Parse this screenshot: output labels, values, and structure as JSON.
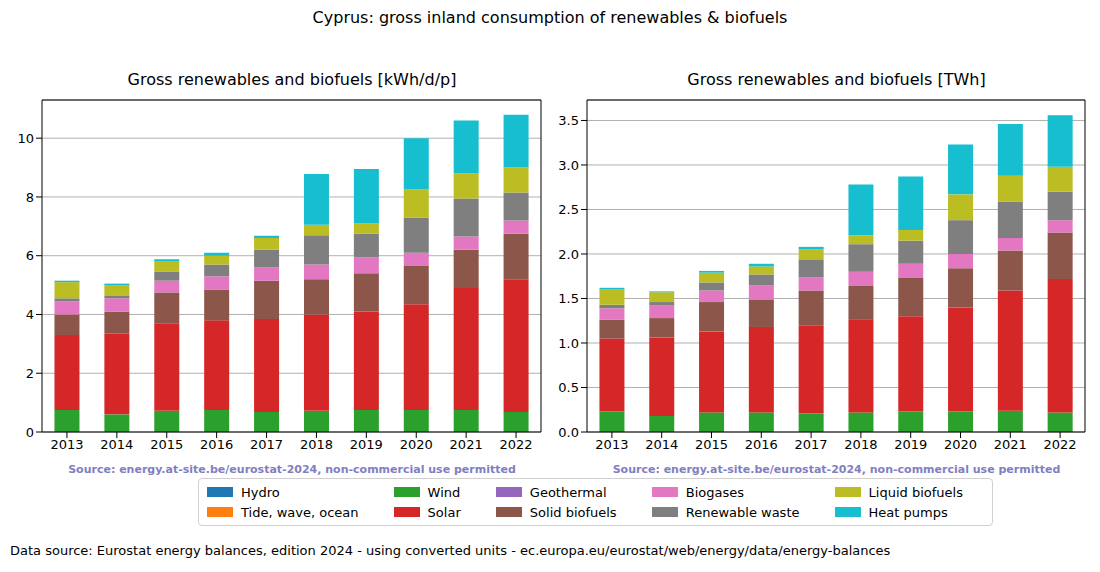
{
  "title": "Cyprus: gross inland consumption of renewables & biofuels",
  "footer": "Data source: Eurostat energy balances, edition 2024 - using converted units - ec.europa.eu/eurostat/web/energy/data/energy-balances",
  "legend": "lower center",
  "chart_data": [
    {
      "type": "bar",
      "stacked": true,
      "grid": true,
      "title": "Gross renewables and biofuels [kWh/d/p]",
      "source": "Source: energy.at-site.be/eurostat-2024, non-commercial use permitted",
      "categories": [
        "2013",
        "2014",
        "2015",
        "2016",
        "2017",
        "2018",
        "2019",
        "2020",
        "2021",
        "2022"
      ],
      "ylim": [
        0,
        11.3
      ],
      "yticks": [
        0,
        2,
        4,
        6,
        8,
        10
      ],
      "series": [
        {
          "name": "Hydro",
          "color": "#1f77b4",
          "values": [
            0,
            0,
            0,
            0,
            0,
            0,
            0,
            0,
            0,
            0
          ]
        },
        {
          "name": "Tide, wave, ocean",
          "color": "#ff7f0e",
          "values": [
            0,
            0,
            0,
            0,
            0,
            0,
            0,
            0,
            0,
            0
          ]
        },
        {
          "name": "Wind",
          "color": "#2ca02c",
          "values": [
            0.75,
            0.6,
            0.72,
            0.75,
            0.68,
            0.72,
            0.75,
            0.75,
            0.75,
            0.68
          ]
        },
        {
          "name": "Solar",
          "color": "#d62728",
          "values": [
            2.55,
            2.75,
            2.98,
            3.05,
            3.17,
            3.28,
            3.35,
            3.6,
            4.15,
            4.52
          ]
        },
        {
          "name": "Geothermal",
          "color": "#9467bd",
          "values": [
            0,
            0,
            0,
            0,
            0,
            0,
            0,
            0,
            0,
            0
          ]
        },
        {
          "name": "Solid biofuels",
          "color": "#8c564b",
          "values": [
            0.7,
            0.75,
            1.05,
            1.05,
            1.3,
            1.2,
            1.3,
            1.3,
            1.3,
            1.55
          ]
        },
        {
          "name": "Biogases",
          "color": "#e377c2",
          "values": [
            0.45,
            0.45,
            0.4,
            0.45,
            0.45,
            0.5,
            0.55,
            0.45,
            0.45,
            0.45
          ]
        },
        {
          "name": "Renewable waste",
          "color": "#7f7f7f",
          "values": [
            0.1,
            0.1,
            0.3,
            0.4,
            0.6,
            1.0,
            0.8,
            1.2,
            1.3,
            0.95
          ]
        },
        {
          "name": "Liquid biofuels",
          "color": "#bcbd22",
          "values": [
            0.55,
            0.35,
            0.35,
            0.3,
            0.4,
            0.35,
            0.35,
            0.95,
            0.85,
            0.85
          ]
        },
        {
          "name": "Heat pumps",
          "color": "#17becf",
          "values": [
            0.05,
            0.05,
            0.08,
            0.1,
            0.08,
            1.73,
            1.85,
            1.75,
            1.8,
            1.8
          ]
        }
      ]
    },
    {
      "type": "bar",
      "stacked": true,
      "grid": true,
      "title": "Gross renewables and biofuels [TWh]",
      "source": "Source: energy.at-site.be/eurostat-2024, non-commercial use permitted",
      "categories": [
        "2013",
        "2014",
        "2015",
        "2016",
        "2017",
        "2018",
        "2019",
        "2020",
        "2021",
        "2022"
      ],
      "ylim": [
        0,
        3.73
      ],
      "yticks": [
        {
          "value": 0,
          "label": "0.0"
        },
        0.5,
        {
          "value": 1,
          "label": "1.0"
        },
        1.5,
        {
          "value": 2,
          "label": "2.0"
        },
        2.5,
        {
          "value": 3,
          "label": "3.0"
        },
        3.5
      ],
      "series": [
        {
          "name": "Hydro",
          "color": "#1f77b4",
          "values": [
            0,
            0,
            0,
            0,
            0,
            0,
            0,
            0,
            0,
            0
          ]
        },
        {
          "name": "Tide, wave, ocean",
          "color": "#ff7f0e",
          "values": [
            0,
            0,
            0,
            0,
            0,
            0,
            0,
            0,
            0,
            0
          ]
        },
        {
          "name": "Wind",
          "color": "#2ca02c",
          "values": [
            0.23,
            0.18,
            0.22,
            0.22,
            0.21,
            0.22,
            0.23,
            0.23,
            0.24,
            0.22
          ]
        },
        {
          "name": "Solar",
          "color": "#d62728",
          "values": [
            0.82,
            0.88,
            0.91,
            0.96,
            0.99,
            1.04,
            1.07,
            1.17,
            1.35,
            1.5
          ]
        },
        {
          "name": "Geothermal",
          "color": "#9467bd",
          "values": [
            0,
            0,
            0,
            0,
            0,
            0,
            0,
            0,
            0,
            0
          ]
        },
        {
          "name": "Solid biofuels",
          "color": "#8c564b",
          "values": [
            0.21,
            0.22,
            0.33,
            0.31,
            0.39,
            0.38,
            0.43,
            0.44,
            0.45,
            0.52
          ]
        },
        {
          "name": "Biogases",
          "color": "#e377c2",
          "values": [
            0.13,
            0.14,
            0.13,
            0.16,
            0.15,
            0.16,
            0.16,
            0.16,
            0.14,
            0.14
          ]
        },
        {
          "name": "Renewable waste",
          "color": "#7f7f7f",
          "values": [
            0.04,
            0.04,
            0.09,
            0.12,
            0.2,
            0.31,
            0.26,
            0.38,
            0.41,
            0.32
          ]
        },
        {
          "name": "Liquid biofuels",
          "color": "#bcbd22",
          "values": [
            0.17,
            0.11,
            0.11,
            0.09,
            0.11,
            0.1,
            0.12,
            0.29,
            0.29,
            0.28
          ]
        },
        {
          "name": "Heat pumps",
          "color": "#17becf",
          "values": [
            0.02,
            0.01,
            0.02,
            0.03,
            0.03,
            0.57,
            0.6,
            0.56,
            0.58,
            0.58
          ]
        }
      ]
    }
  ]
}
